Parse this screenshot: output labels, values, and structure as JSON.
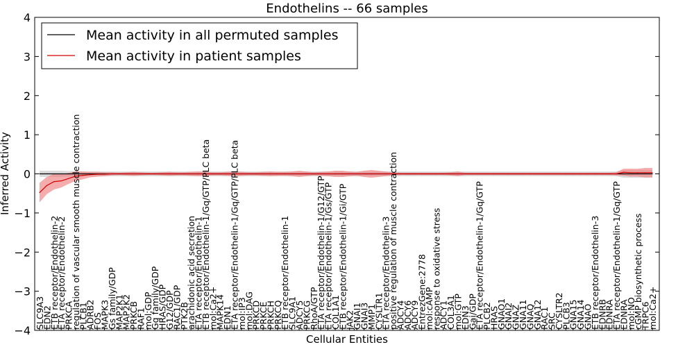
{
  "chart_data": {
    "type": "line",
    "title": "Endothelins -- 66 samples",
    "xlabel": "Cellular Entities",
    "ylabel": "Inferred Activity",
    "ylim": [
      -4,
      4
    ],
    "yticks": [
      -4,
      -3,
      -2,
      -1,
      0,
      1,
      2,
      3,
      4
    ],
    "legend_position": "top-left",
    "categories": [
      "SLC9A3",
      "EDN2",
      "ETB receptor/Endothelin-2",
      "ETA receptor/Endothelin-2",
      "PRKCA",
      "regulation of vascular smooth muscle contraction",
      "PLCB1",
      "ADRB2",
      "FOS",
      "MAPK3",
      "Gs family/GDP",
      "MAP2K1",
      "MAP2K2",
      "PRKCB",
      "RAF1",
      "mol:GDP",
      "Gq family/GDP",
      "HRAS/GDP",
      "G12/GDP",
      "RAC1/GDP",
      "PTK2B",
      "arachidonic acid secretion",
      "ETA receptor/Endothelin-1",
      "ETB receptor/Endothelin-1/Gq/GTP/PLC beta",
      "mol:Ca2+",
      "MAPK14",
      "EDN1",
      "ETA receptor/Endothelin-1/Gq/GTP/PLC beta",
      "mol:IP3",
      "mol:DAG",
      "PRKCD",
      "PRKCE",
      "PRKCH",
      "PRKCQ",
      "ETB receptor/Endothelin-1",
      "SLC9A1",
      "ADCY5",
      "PRKCG",
      "RhoA/GTP",
      "ETA receptor/Endothelin-1/G12/GTP",
      "ETA receptor/Endothelin-1/Gs/GTP",
      "COL1A1",
      "ETB receptor/Endothelin-1/Gi/GTP",
      "JAK2",
      "GNAI1",
      "GNAI3",
      "MMP1",
      "CYSLTR1",
      "ETA receptor/Endothelin-3",
      "positive regulation of muscle contraction",
      "ADCY4",
      "ADCY6",
      "ADCY9",
      "EntrezGene:2778",
      "mol:cAMP",
      "response to oxidative stress",
      "ADCY1",
      "COL3A1",
      "mol:GTP",
      "EDN3",
      "Gai/GDP",
      "ETA receptor/Endothelin-1/Gq/GTP",
      "PLCB2",
      "HRAS",
      "GNAO1",
      "GNAI2",
      "GNAZ",
      "GNA11",
      "GNAQ",
      "GNA12",
      "RAC1",
      "SRC",
      "CYSLTR2",
      "PLCB3",
      "GNA15",
      "GNA14",
      "GNAO",
      "ETB receptor/Endothelin-3",
      "EDNRB",
      "EDNRA",
      "ETA receptor/Endothelin-1/Gq/GTP",
      "EDNRA",
      "mol:NO",
      "cGMP biosynthetic process",
      "TRPC6",
      "mol:Ca2+"
    ],
    "series": [
      {
        "name": "Mean activity in all permuted samples",
        "color": "#000000",
        "band_color": "#cccccc",
        "values": [
          0.0,
          0.0,
          0.0,
          0.0,
          0.0,
          0.0,
          0.0,
          0.0,
          0.0,
          0.0,
          0.0,
          0.0,
          0.0,
          0.0,
          0.0,
          0.0,
          0.0,
          0.0,
          0.0,
          0.0,
          0.0,
          0.0,
          0.0,
          0.0,
          0.0,
          0.0,
          0.0,
          0.0,
          0.0,
          0.0,
          0.0,
          0.0,
          0.0,
          0.0,
          0.0,
          0.0,
          0.0,
          0.0,
          0.0,
          0.0,
          0.0,
          0.0,
          0.0,
          0.0,
          0.0,
          0.0,
          0.0,
          0.0,
          0.0,
          0.0,
          0.0,
          0.0,
          0.0,
          0.0,
          0.0,
          0.0,
          0.0,
          0.0,
          0.0,
          0.0,
          0.0,
          0.0,
          0.0,
          0.0,
          0.0,
          0.0,
          0.0,
          0.0,
          0.0,
          0.0,
          0.0,
          0.0,
          0.0,
          0.0,
          0.0,
          0.0,
          0.0,
          0.0,
          0.0,
          0.0,
          0.0,
          0.0,
          0.0,
          0.0,
          0.0,
          0.0
        ],
        "band": [
          0.08,
          0.08,
          0.08,
          0.08,
          0.07,
          0.07,
          0.06,
          0.06,
          0.06,
          0.06,
          0.06,
          0.06,
          0.06,
          0.06,
          0.06,
          0.06,
          0.06,
          0.06,
          0.06,
          0.06,
          0.06,
          0.06,
          0.06,
          0.06,
          0.06,
          0.06,
          0.06,
          0.06,
          0.06,
          0.06,
          0.06,
          0.06,
          0.06,
          0.06,
          0.06,
          0.06,
          0.06,
          0.06,
          0.06,
          0.06,
          0.06,
          0.06,
          0.06,
          0.06,
          0.06,
          0.06,
          0.06,
          0.06,
          0.06,
          0.06,
          0.06,
          0.06,
          0.06,
          0.06,
          0.06,
          0.06,
          0.06,
          0.06,
          0.06,
          0.06,
          0.06,
          0.06,
          0.06,
          0.06,
          0.06,
          0.06,
          0.06,
          0.06,
          0.06,
          0.06,
          0.06,
          0.06,
          0.06,
          0.06,
          0.06,
          0.06,
          0.06,
          0.06,
          0.06,
          0.06,
          0.06,
          0.1,
          0.1,
          0.1,
          0.1,
          0.1
        ]
      },
      {
        "name": "Mean activity in patient samples",
        "color": "#d40000",
        "band_color": "#f08080",
        "values": [
          -0.48,
          -0.3,
          -0.2,
          -0.18,
          -0.12,
          -0.06,
          -0.04,
          -0.02,
          -0.01,
          -0.01,
          0.0,
          0.0,
          0.0,
          0.0,
          0.0,
          0.0,
          0.0,
          0.0,
          0.0,
          0.0,
          0.0,
          0.0,
          0.0,
          0.0,
          0.0,
          0.0,
          0.0,
          0.0,
          0.0,
          0.0,
          0.0,
          0.0,
          0.0,
          0.0,
          0.0,
          0.0,
          0.0,
          0.0,
          0.0,
          0.0,
          0.0,
          0.0,
          0.0,
          0.0,
          0.0,
          0.0,
          0.0,
          0.0,
          0.0,
          0.0,
          0.0,
          0.0,
          0.0,
          0.0,
          0.0,
          0.0,
          0.0,
          0.0,
          0.0,
          0.0,
          0.0,
          0.0,
          0.0,
          0.0,
          0.0,
          0.0,
          0.0,
          0.0,
          0.0,
          0.0,
          0.0,
          0.0,
          0.0,
          0.0,
          0.0,
          0.0,
          0.0,
          0.0,
          0.0,
          0.0,
          0.0,
          0.04,
          0.03,
          0.03,
          0.03,
          0.03
        ],
        "band": [
          0.25,
          0.22,
          0.2,
          0.17,
          0.14,
          0.12,
          0.1,
          0.07,
          0.06,
          0.05,
          0.04,
          0.03,
          0.04,
          0.05,
          0.04,
          0.03,
          0.03,
          0.04,
          0.05,
          0.04,
          0.04,
          0.05,
          0.06,
          0.05,
          0.04,
          0.04,
          0.05,
          0.06,
          0.05,
          0.04,
          0.04,
          0.05,
          0.06,
          0.05,
          0.05,
          0.06,
          0.08,
          0.06,
          0.04,
          0.05,
          0.06,
          0.08,
          0.08,
          0.06,
          0.05,
          0.08,
          0.1,
          0.08,
          0.06,
          0.04,
          0.03,
          0.03,
          0.03,
          0.03,
          0.03,
          0.03,
          0.03,
          0.04,
          0.06,
          0.03,
          0.03,
          0.03,
          0.03,
          0.03,
          0.03,
          0.03,
          0.03,
          0.03,
          0.03,
          0.03,
          0.03,
          0.03,
          0.03,
          0.03,
          0.03,
          0.03,
          0.03,
          0.03,
          0.03,
          0.03,
          0.04,
          0.09,
          0.1,
          0.1,
          0.12,
          0.12
        ]
      }
    ]
  }
}
